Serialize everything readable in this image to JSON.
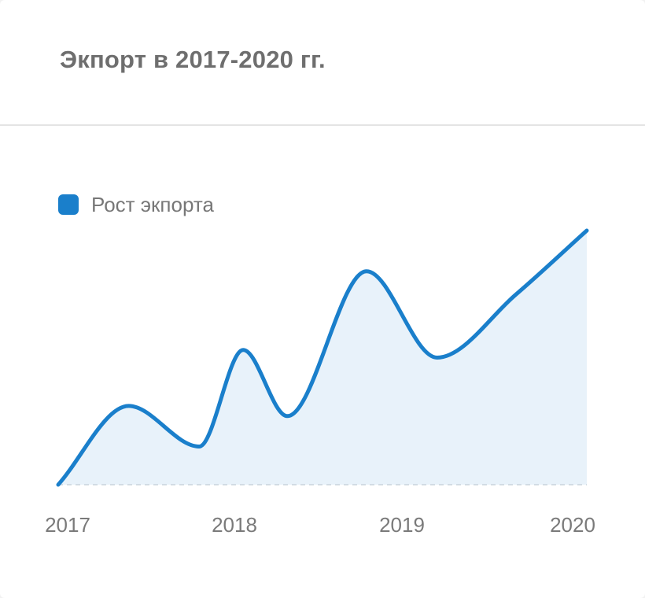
{
  "colors": {
    "series": "#1a7fcb",
    "area": "#e8f2fa",
    "baseline": "#c9d3dc"
  },
  "chart_data": {
    "type": "area",
    "title": "Экпорт в 2017-2020 гг.",
    "xlabel": "",
    "ylabel": "",
    "grid": false,
    "legend_position": "top-left",
    "x": [
      2017,
      2017.4,
      2017.8,
      2018.05,
      2018.3,
      2018.75,
      2019.15,
      2019.6,
      2020
    ],
    "x_ticks": [
      "2017",
      "2018",
      "2019",
      "2020"
    ],
    "ylim": [
      0,
      100
    ],
    "series": [
      {
        "name": "Рост экпорта",
        "values": [
          0,
          31,
          15,
          53,
          27,
          84,
          50,
          75,
          100
        ]
      }
    ]
  }
}
